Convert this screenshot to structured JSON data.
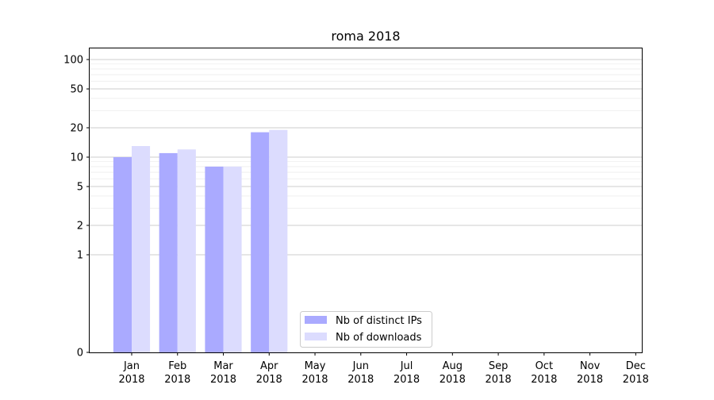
{
  "chart_data": {
    "type": "bar",
    "title": "roma 2018",
    "xlabel": "",
    "ylabel": "",
    "yscale": "symlog",
    "ylim": [
      0,
      130
    ],
    "yticks": [
      0,
      1,
      2,
      5,
      10,
      20,
      50,
      100
    ],
    "ytick_labels": [
      "0",
      "1",
      "2",
      "5",
      "10",
      "20",
      "50",
      "100"
    ],
    "grid": true,
    "legend_position": "bottom-center",
    "categories": [
      {
        "month": "Jan",
        "year": "2018"
      },
      {
        "month": "Feb",
        "year": "2018"
      },
      {
        "month": "Mar",
        "year": "2018"
      },
      {
        "month": "Apr",
        "year": "2018"
      },
      {
        "month": "May",
        "year": "2018"
      },
      {
        "month": "Jun",
        "year": "2018"
      },
      {
        "month": "Jul",
        "year": "2018"
      },
      {
        "month": "Aug",
        "year": "2018"
      },
      {
        "month": "Sep",
        "year": "2018"
      },
      {
        "month": "Oct",
        "year": "2018"
      },
      {
        "month": "Nov",
        "year": "2018"
      },
      {
        "month": "Dec",
        "year": "2018"
      }
    ],
    "series": [
      {
        "name": "Nb of distinct IPs",
        "color": "#aaaaff",
        "values": [
          10,
          11,
          8,
          18,
          0,
          0,
          0,
          0,
          0,
          0,
          0,
          0
        ]
      },
      {
        "name": "Nb of downloads",
        "color": "#dcdcfe",
        "values": [
          13,
          12,
          8,
          19,
          0,
          0,
          0,
          0,
          0,
          0,
          0,
          0
        ]
      }
    ]
  }
}
